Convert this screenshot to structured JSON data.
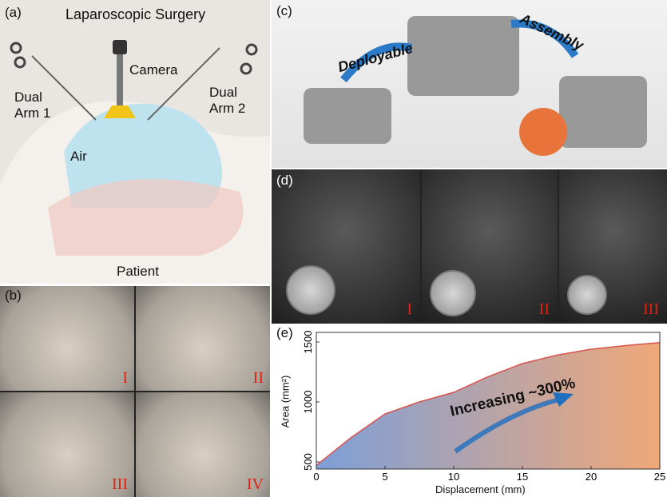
{
  "panel_a": {
    "label": "(a)",
    "title": "Laparoscopic Surgery",
    "camera": "Camera",
    "arm1": "Dual Arm 1",
    "arm2": "Dual Arm 2",
    "air": "Air",
    "patient": "Patient"
  },
  "panel_b": {
    "label": "(b)",
    "frames": [
      "I",
      "II",
      "III",
      "IV"
    ]
  },
  "panel_c": {
    "label": "(c)",
    "step1": "Deployable",
    "step2": "Assembly"
  },
  "panel_d": {
    "label": "(d)",
    "frames": [
      "I",
      "II",
      "III"
    ]
  },
  "panel_e": {
    "label": "(e)",
    "annotation": "Increasing ~300%"
  },
  "colors": {
    "curve": "#d9534f",
    "fill_start": "#7d9fd8",
    "fill_end": "#f0a878",
    "arrow": "#1f6fc0",
    "roman": "#dd1111"
  },
  "chart_data": {
    "type": "area",
    "xlabel": "Displacement (mm)",
    "ylabel": "Area (mm²)",
    "xlim": [
      0,
      25
    ],
    "ylim": [
      440,
      1580
    ],
    "xticks": [
      "0",
      "5",
      "10",
      "15",
      "20",
      "25"
    ],
    "yticks": [
      "500",
      "1000",
      "1500"
    ],
    "x": [
      0,
      2.5,
      5,
      7.5,
      10,
      12.5,
      15,
      17.5,
      20,
      22.5,
      25
    ],
    "y": [
      470,
      700,
      900,
      1000,
      1080,
      1210,
      1320,
      1390,
      1440,
      1470,
      1495
    ],
    "grid": false
  }
}
